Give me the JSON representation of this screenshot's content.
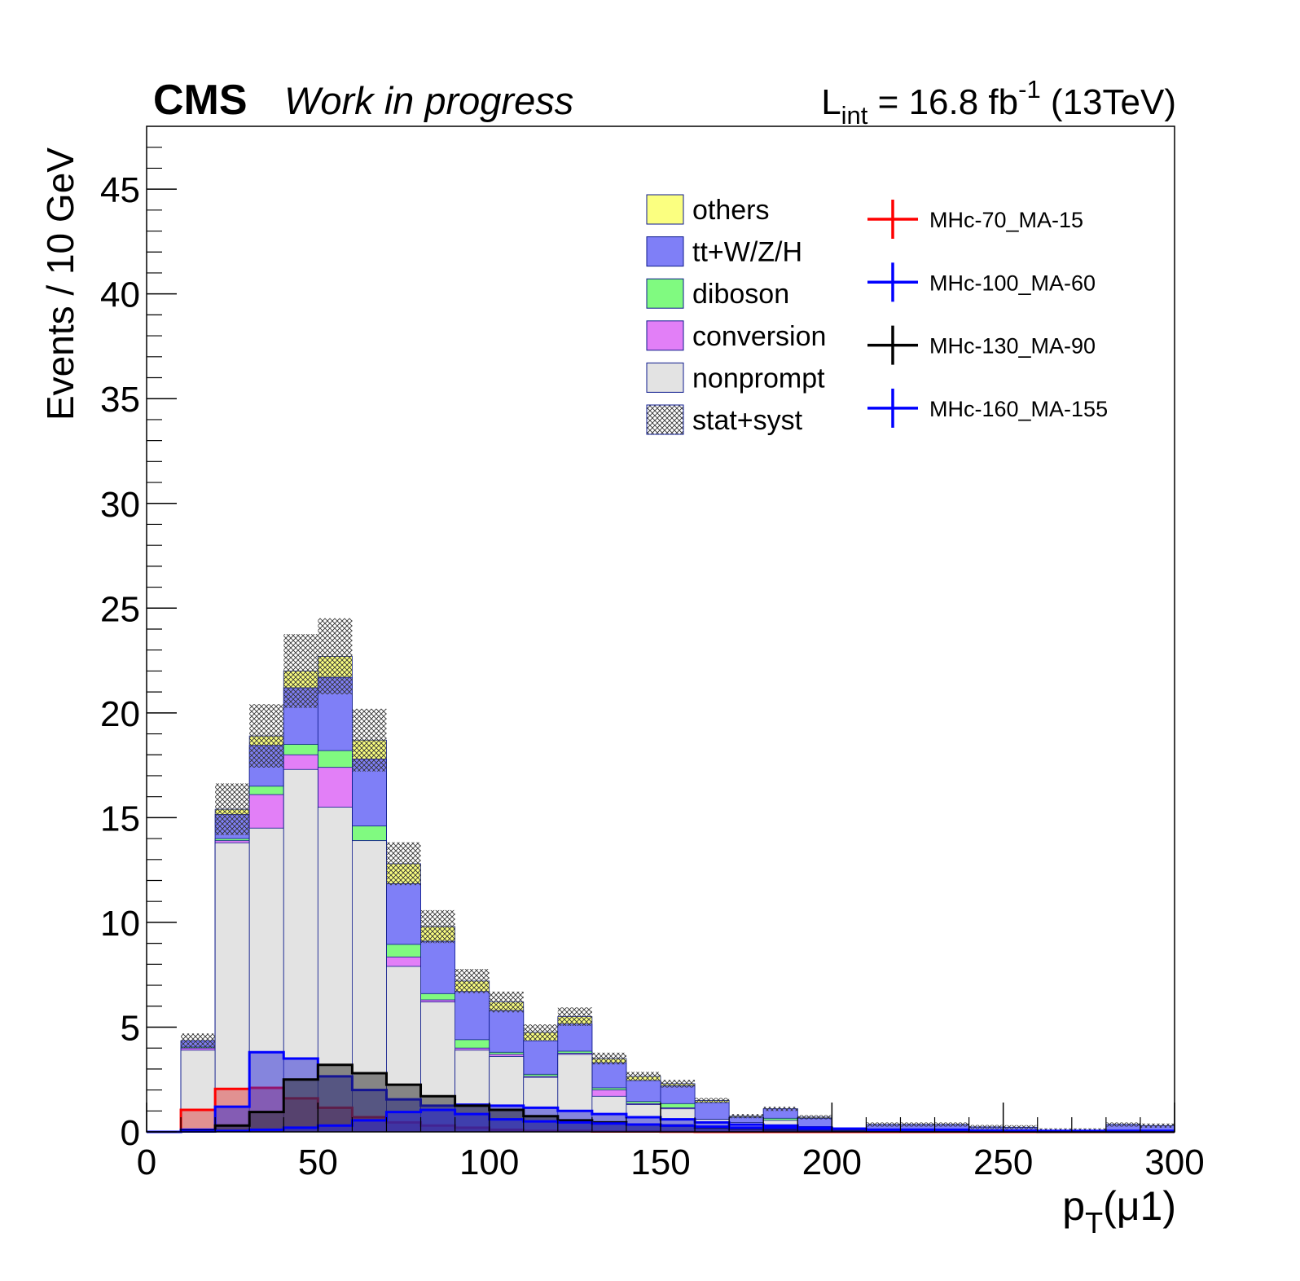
{
  "header": {
    "experiment": "CMS",
    "status": "Work in progress",
    "lumi_prefix": "L",
    "lumi_sub": "int",
    "lumi_value": " = 16.8 fb",
    "lumi_sup": "-1",
    "lumi_energy": " (13TeV)"
  },
  "chart_data": {
    "type": "stacked-histogram",
    "xlabel_main": "p",
    "xlabel_sub": "T",
    "xlabel_rest": "(μ1)",
    "ylabel": "Events / 10 GeV",
    "xlim": [
      0,
      300
    ],
    "ylim": [
      0,
      48
    ],
    "x_ticks": [
      "0",
      "50",
      "100",
      "150",
      "200",
      "250",
      "300"
    ],
    "y_ticks": [
      "0",
      "5",
      "10",
      "15",
      "20",
      "25",
      "30",
      "35",
      "40",
      "45"
    ],
    "bin_edges": [
      0,
      10,
      20,
      30,
      40,
      50,
      60,
      70,
      80,
      90,
      100,
      110,
      120,
      130,
      140,
      150,
      160,
      170,
      180,
      190,
      200,
      210,
      220,
      230,
      240,
      250,
      260,
      270,
      280,
      290,
      300
    ],
    "stack": [
      {
        "name": "nonprompt",
        "color": "#e3e3e3",
        "values": [
          0,
          3.9,
          13.8,
          14.5,
          17.3,
          15.5,
          13.9,
          7.9,
          6.2,
          3.9,
          3.6,
          2.6,
          3.7,
          1.7,
          1.3,
          1.1,
          0.6,
          0.45,
          0.55,
          0.25,
          0.05,
          0.05,
          0.05,
          0.05,
          0.03,
          0.02,
          0.02,
          0.02,
          0.05,
          0.05
        ]
      },
      {
        "name": "conversion",
        "color": "#e27ff7",
        "values": [
          0,
          0.1,
          0.1,
          1.6,
          0.7,
          1.9,
          0,
          0.45,
          0.1,
          0.1,
          0.1,
          0.05,
          0.05,
          0.3,
          0.05,
          0.05,
          0,
          0,
          0,
          0,
          0,
          0,
          0,
          0,
          0,
          0,
          0,
          0,
          0,
          0
        ]
      },
      {
        "name": "diboson",
        "color": "#80fa80",
        "values": [
          0,
          0.05,
          0.1,
          0.4,
          0.5,
          0.8,
          0.7,
          0.6,
          0.3,
          0.4,
          0.1,
          0.1,
          0.1,
          0.1,
          0.1,
          0.2,
          0,
          0,
          0.1,
          0,
          0,
          0,
          0,
          0,
          0,
          0,
          0,
          0,
          0,
          0
        ]
      },
      {
        "name": "tt+W/Z/H",
        "color": "#7f7ff7",
        "values": [
          0,
          0.3,
          1.15,
          1.95,
          2.7,
          3.5,
          3.2,
          2.9,
          2.5,
          2.3,
          2.0,
          1.6,
          1.3,
          1.2,
          1.0,
          0.85,
          0.8,
          0.25,
          0.45,
          0.4,
          0.05,
          0.3,
          0.3,
          0.3,
          0.2,
          0.2,
          0.05,
          0.05,
          0.3,
          0.25
        ]
      },
      {
        "name": "others",
        "color": "#fbff80",
        "values": [
          0,
          0,
          0.25,
          0.45,
          0.8,
          1.0,
          0.9,
          0.95,
          0.7,
          0.5,
          0.4,
          0.4,
          0.35,
          0.2,
          0.2,
          0.1,
          0.1,
          0.05,
          0,
          0.05,
          0,
          0,
          0,
          0,
          0,
          0,
          0,
          0,
          0,
          0
        ]
      }
    ],
    "uncertainty": {
      "name": "stat+syst",
      "fraction": 0.08,
      "min_abs": 0.1
    },
    "signals": [
      {
        "name": "MHc-70_MA-15",
        "color": "#ff0000",
        "fill": "rgba(224,64,64,0.5)",
        "values": [
          0,
          1.05,
          2.05,
          2.1,
          1.6,
          1.15,
          0.7,
          0.45,
          0.3,
          0.2,
          0.1,
          0.05,
          0.05,
          0.02,
          0.02,
          0.01,
          0,
          0,
          0,
          0,
          0,
          0,
          0,
          0,
          0,
          0,
          0,
          0,
          0,
          0
        ]
      },
      {
        "name": "MHc-100_MA-60",
        "color": "#0000ff",
        "fill": "rgba(40,40,215,0.5)",
        "values": [
          0,
          0.1,
          1.2,
          3.8,
          3.5,
          2.65,
          2.0,
          1.55,
          1.25,
          1.3,
          1.25,
          1.15,
          1.0,
          0.85,
          0.7,
          0.6,
          0.45,
          0.35,
          0.3,
          0.2,
          0.15,
          0.1,
          0.1,
          0.05,
          0.05,
          0.03,
          0.02,
          0.02,
          0.01,
          0.01
        ]
      },
      {
        "name": "MHc-130_MA-90",
        "color": "#000000",
        "fill": "rgba(40,40,40,0.5)",
        "values": [
          0,
          0.05,
          0.3,
          0.95,
          2.5,
          3.2,
          2.8,
          2.25,
          1.7,
          1.25,
          1.05,
          0.75,
          0.55,
          0.45,
          0.35,
          0.3,
          0.2,
          0.15,
          0.1,
          0.1,
          0.05,
          0.05,
          0.03,
          0.03,
          0.02,
          0.02,
          0.01,
          0.01,
          0.01,
          0.01
        ]
      },
      {
        "name": "MHc-160_MA-155",
        "color": "#0000ff",
        "fill": "rgba(40,40,215,0.5)",
        "values": [
          0,
          0.02,
          0.05,
          0.1,
          0.2,
          0.3,
          0.55,
          0.95,
          1.05,
          0.85,
          0.6,
          0.5,
          0.45,
          0.4,
          0.35,
          0.3,
          0.25,
          0.2,
          0.2,
          0.15,
          0.15,
          0.1,
          0.1,
          0.1,
          0.05,
          0.05,
          0.05,
          0.05,
          0.05,
          0.05
        ]
      }
    ]
  }
}
